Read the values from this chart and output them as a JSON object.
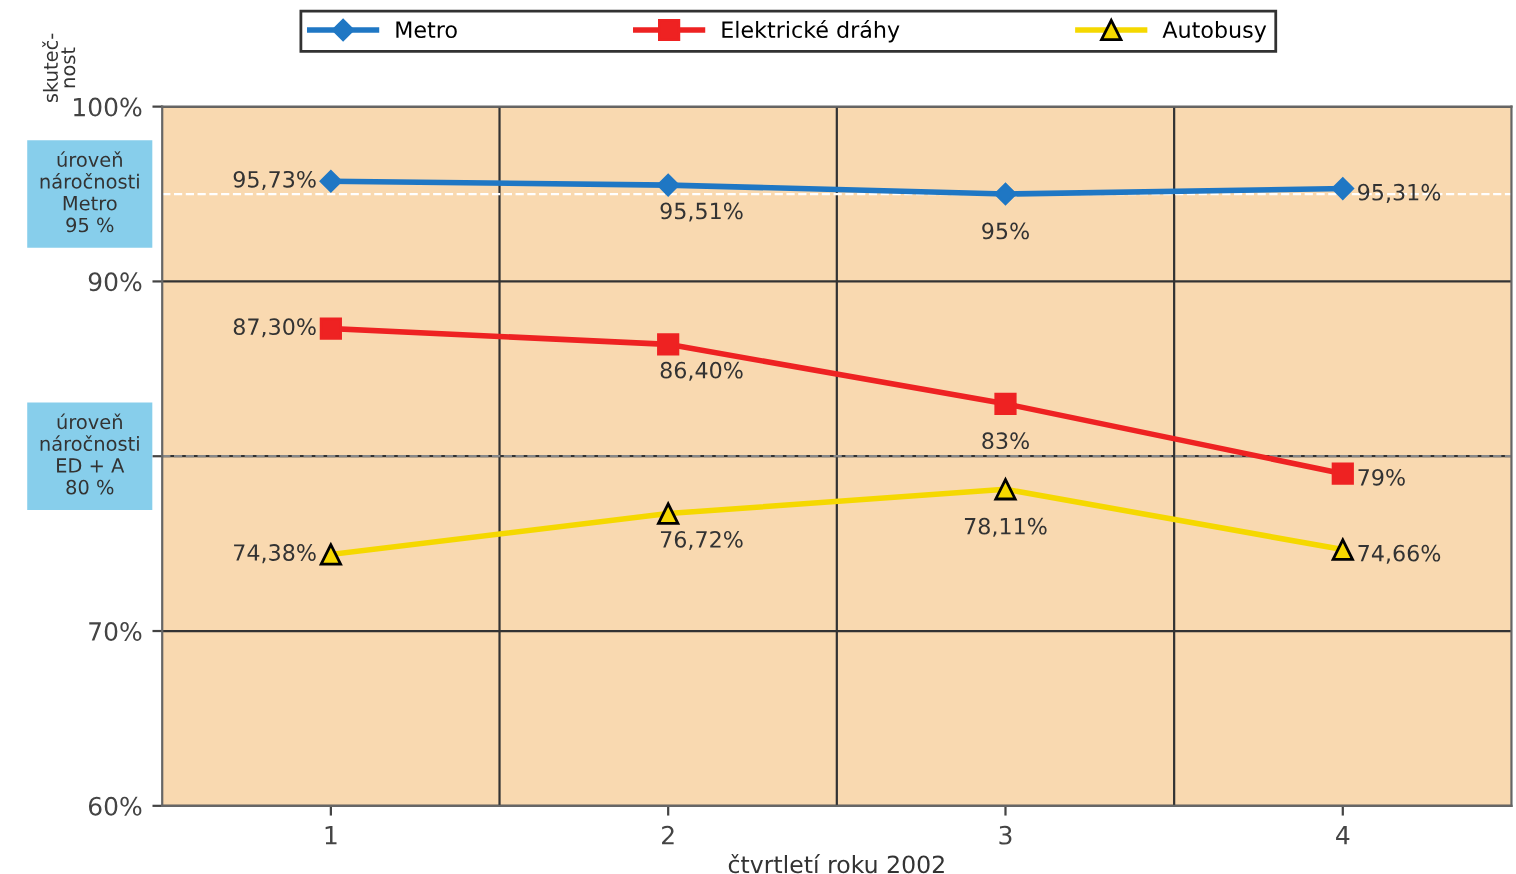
{
  "chart_data": {
    "type": "line",
    "xlabel": "čtvrtletí roku 2002",
    "ylabel": "skuteč-\nnost",
    "categories": [
      "1",
      "2",
      "3",
      "4"
    ],
    "series": [
      {
        "name": "Metro",
        "color": "#1f77c4",
        "marker": "diamond",
        "values": [
          95.73,
          95.51,
          95,
          95.31
        ],
        "value_labels": [
          "95,73%",
          "95,51%",
          "95%",
          "95,31%"
        ]
      },
      {
        "name": "Elektrické dráhy",
        "color": "#ee2222",
        "marker": "square",
        "values": [
          87.3,
          86.4,
          83,
          79
        ],
        "value_labels": [
          "87,30%",
          "86,40%",
          "83%",
          "79%"
        ]
      },
      {
        "name": "Autobusy",
        "color": "#f5d800",
        "marker": "triangle",
        "values": [
          74.38,
          76.72,
          78.11,
          74.66
        ],
        "value_labels": [
          "74,38%",
          "76,72%",
          "78,11%",
          "74,66%"
        ]
      }
    ],
    "ylim": [
      60,
      100
    ],
    "yticks": [
      {
        "value": 60,
        "label": "60%"
      },
      {
        "value": 70,
        "label": "70%"
      },
      {
        "value": 80,
        "label": null
      },
      {
        "value": 90,
        "label": "90%"
      },
      {
        "value": 100,
        "label": "100%"
      }
    ],
    "ref_lines": [
      {
        "axis": "y",
        "value": 95,
        "label": "úroveň\nnáročnosti\nMetro\n95 %",
        "color": "#ffffff",
        "line_style": "dashed"
      },
      {
        "axis": "y",
        "value": 80,
        "label": "úroveň\nnáročnosti\nED + A\n80 %",
        "color": "#888888",
        "line_style": "dashed"
      }
    ],
    "grid": true,
    "legend": "top"
  }
}
